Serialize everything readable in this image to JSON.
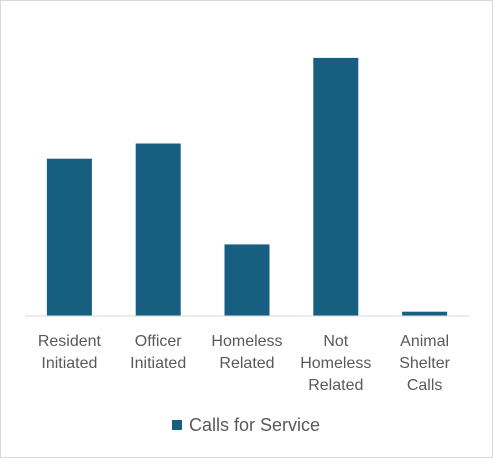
{
  "chart_data": {
    "type": "bar",
    "categories": [
      [
        "Resident",
        "Initiated"
      ],
      [
        "Officer",
        "Initiated"
      ],
      [
        "Homeless",
        "Related"
      ],
      [
        "Not",
        "Homeless",
        "Related"
      ],
      [
        "Animal",
        "Shelter",
        "Calls"
      ]
    ],
    "series": [
      {
        "name": "Calls for Service",
        "values": [
          145,
          159,
          66,
          238,
          4
        ]
      }
    ],
    "ylim": [
      0,
      260
    ],
    "grid": false,
    "legend": "bottom",
    "colors": {
      "bar": "#175f80",
      "axis": "#d9d9d9",
      "text": "#595959"
    }
  }
}
